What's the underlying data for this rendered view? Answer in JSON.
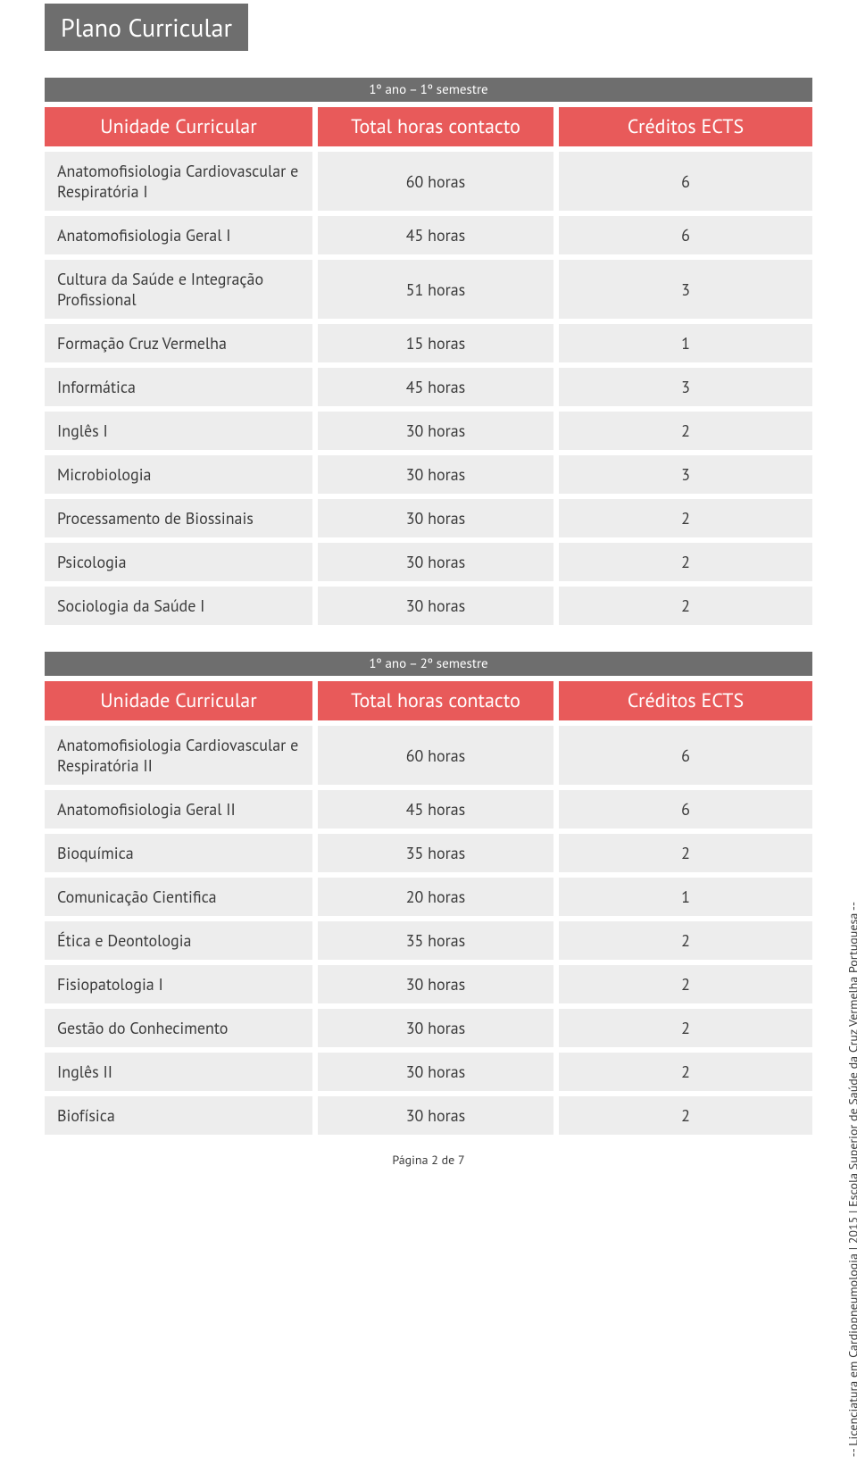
{
  "title": "Plano Curricular",
  "side_text": "-- Licenciatura em Cardiopneumologia | 2015 | Escola Superior de Saúde da Cruz Vermelha Portuguesa --",
  "footer": "Página 2 de 7",
  "colors": {
    "tab_bg": "#6e6e6e",
    "header_bg": "#e85a5a",
    "row_bg": "#ededed",
    "text": "#3a3a3a",
    "white": "#ffffff"
  },
  "sections": [
    {
      "semester": "1º ano – 1º semestre",
      "columns": [
        "Unidade Curricular",
        "Total horas contacto",
        "Créditos ECTS"
      ],
      "rows": [
        [
          "Anatomofisiologia Cardiovascular e Respiratória I",
          "60 horas",
          "6"
        ],
        [
          "Anatomofisiologia Geral I",
          "45 horas",
          "6"
        ],
        [
          "Cultura da Saúde e Integração Profissional",
          "51 horas",
          "3"
        ],
        [
          "Formação Cruz Vermelha",
          "15 horas",
          "1"
        ],
        [
          "Informática",
          "45 horas",
          "3"
        ],
        [
          "Inglês I",
          "30 horas",
          "2"
        ],
        [
          "Microbiologia",
          "30 horas",
          "3"
        ],
        [
          "Processamento de Biossinais",
          "30 horas",
          "2"
        ],
        [
          "Psicologia",
          "30 horas",
          "2"
        ],
        [
          "Sociologia da Saúde I",
          "30 horas",
          "2"
        ]
      ]
    },
    {
      "semester": "1º ano – 2º semestre",
      "columns": [
        "Unidade Curricular",
        "Total horas contacto",
        "Créditos ECTS"
      ],
      "rows": [
        [
          "Anatomofisiologia Cardiovascular e Respiratória II",
          "60 horas",
          "6"
        ],
        [
          "Anatomofisiologia Geral II",
          "45 horas",
          "6"
        ],
        [
          "Bioquímica",
          "35 horas",
          "2"
        ],
        [
          "Comunicação Cientifica",
          "20 horas",
          "1"
        ],
        [
          "Ética e Deontologia",
          "35 horas",
          "2"
        ],
        [
          "Fisiopatologia I",
          "30 horas",
          "2"
        ],
        [
          "Gestão do Conhecimento",
          "30 horas",
          "2"
        ],
        [
          "Inglês II",
          "30 horas",
          "2"
        ],
        [
          "Biofísica",
          "30 horas",
          "2"
        ]
      ]
    }
  ]
}
